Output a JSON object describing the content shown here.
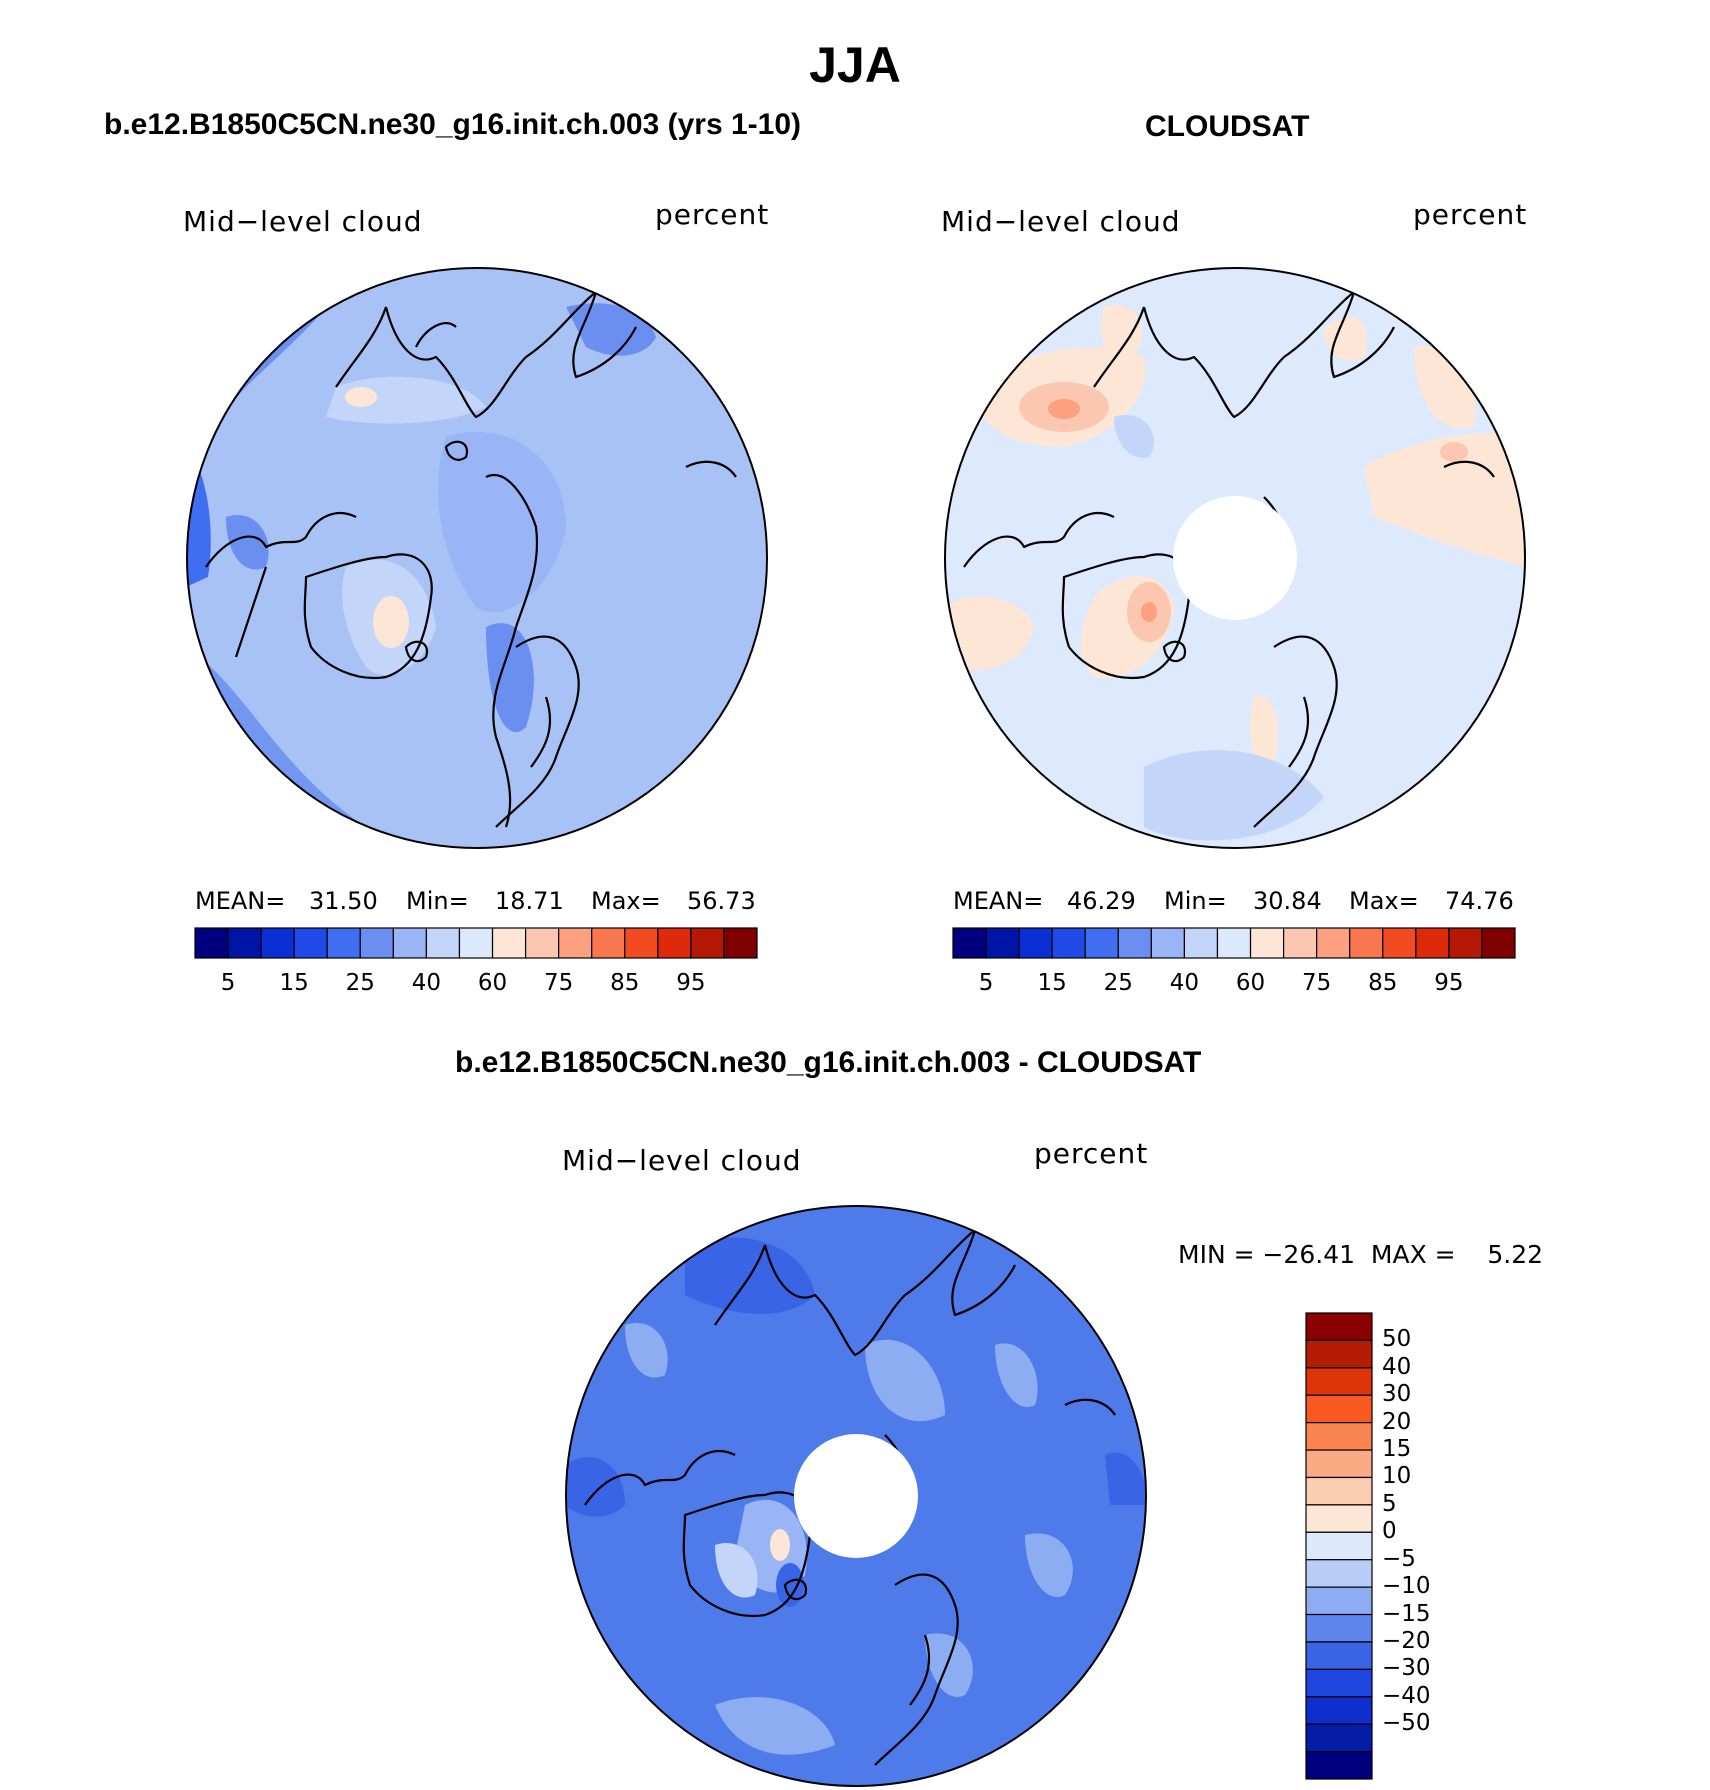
{
  "figure": {
    "season": "JJA"
  },
  "panels": [
    {
      "id": "model",
      "title": "b.e12.B1850C5CN.ne30_g16.init.ch.003 (yrs 1-10)",
      "left_label": "Mid−level cloud",
      "right_label": "percent",
      "stats": {
        "mean_label": "MEAN=",
        "mean": "31.50",
        "min_label": "Min=",
        "min": "18.71",
        "max_label": "Max=",
        "max": "56.73"
      }
    },
    {
      "id": "obs",
      "title": "CLOUDSAT",
      "left_label": "Mid−level cloud",
      "right_label": "percent",
      "stats": {
        "mean_label": "MEAN=",
        "mean": "46.29",
        "min_label": "Min=",
        "min": "30.84",
        "max_label": "Max=",
        "max": "74.76"
      }
    },
    {
      "id": "diff",
      "title": "b.e12.B1850C5CN.ne30_g16.init.ch.003 - CLOUDSAT",
      "left_label": "Mid−level cloud",
      "right_label": "percent",
      "minmax_text": "MIN = −26.41  MAX =    5.22"
    }
  ],
  "colorbar_abs": {
    "colors": [
      "#00007f",
      "#0015a8",
      "#0a2fd4",
      "#1f4ae8",
      "#3f6ef0",
      "#6a8ff0",
      "#9ab5f5",
      "#c3d6f9",
      "#dce9fc",
      "#fde6d6",
      "#fcc7b0",
      "#fca07f",
      "#f9774e",
      "#f24a21",
      "#dd2a0a",
      "#b51805",
      "#7f0000"
    ],
    "tick_labels": [
      "5",
      "15",
      "25",
      "40",
      "60",
      "75",
      "85",
      "95"
    ]
  },
  "colorbar_diff": {
    "colors": [
      "#8b0000",
      "#b51c05",
      "#dd3408",
      "#f75a20",
      "#fa8450",
      "#fbab84",
      "#fbcdb1",
      "#fde6d6",
      "#dce9fc",
      "#b8cef8",
      "#8dadf3",
      "#5e86ec",
      "#3a64e6",
      "#1f46e0",
      "#0e2fcd",
      "#041ca6",
      "#00007f"
    ],
    "tick_labels": [
      "50",
      "40",
      "30",
      "20",
      "15",
      "10",
      "5",
      "0",
      "−5",
      "−10",
      "−15",
      "−20",
      "−30",
      "−40",
      "−50"
    ]
  },
  "legend_colors": {
    "panel1_base": "#a8c2f6",
    "panel2_base": "#dde9fc",
    "panel3_base": "#4f7ae9"
  }
}
